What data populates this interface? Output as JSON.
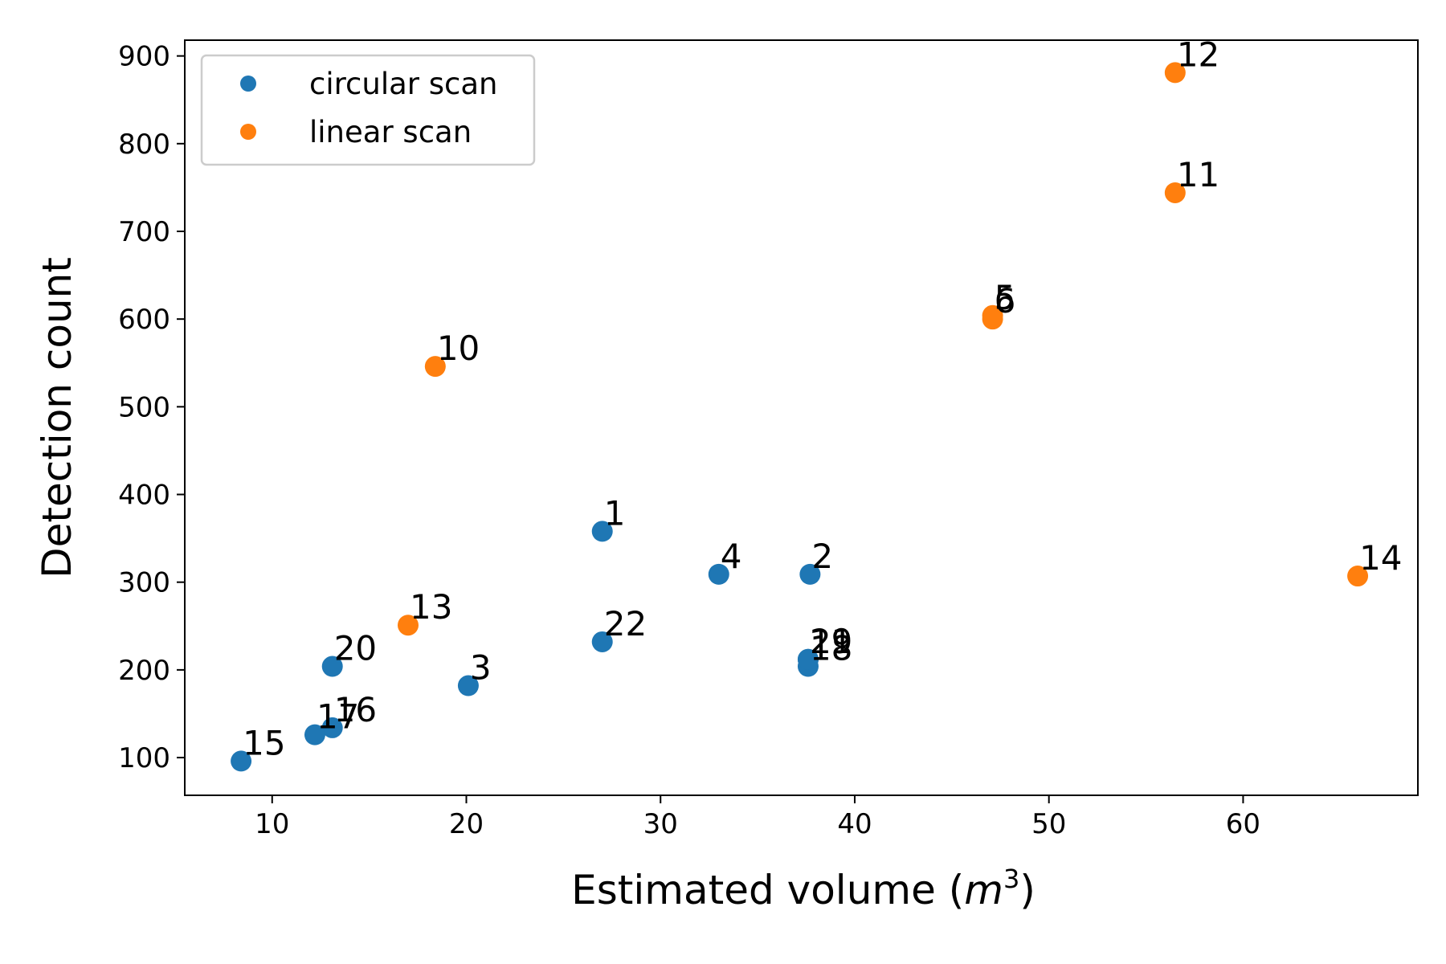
{
  "chart_data": {
    "type": "scatter",
    "xlabel": "Estimated volume (",
    "xlabel_math": "m",
    "xlabel_sup": "3",
    "xlabel_end": ")",
    "ylabel": "Detection count",
    "xlim": [
      5.5,
      69
    ],
    "ylim": [
      57,
      918
    ],
    "xticks": [
      10,
      20,
      30,
      40,
      50,
      60
    ],
    "yticks": [
      100,
      200,
      300,
      400,
      500,
      600,
      700,
      800,
      900
    ],
    "grid": false,
    "legend_position": "upper-left",
    "series": [
      {
        "name": "circular scan",
        "color": "#1f77b4",
        "points": [
          {
            "label": "1",
            "x": 27.0,
            "y": 358
          },
          {
            "label": "2",
            "x": 37.7,
            "y": 309
          },
          {
            "label": "3",
            "x": 20.1,
            "y": 182
          },
          {
            "label": "4",
            "x": 33.0,
            "y": 309
          },
          {
            "label": "15",
            "x": 8.4,
            "y": 96
          },
          {
            "label": "16",
            "x": 13.1,
            "y": 134
          },
          {
            "label": "17",
            "x": 12.2,
            "y": 126
          },
          {
            "label": "18",
            "x": 37.6,
            "y": 204
          },
          {
            "label": "19",
            "x": 37.6,
            "y": 212
          },
          {
            "label": "20",
            "x": 13.1,
            "y": 204
          },
          {
            "label": "21",
            "x": 37.6,
            "y": 212
          },
          {
            "label": "22",
            "x": 27.0,
            "y": 232
          }
        ]
      },
      {
        "name": "linear scan",
        "color": "#ff7f0e",
        "points": [
          {
            "label": "5",
            "x": 47.1,
            "y": 604
          },
          {
            "label": "6",
            "x": 47.1,
            "y": 600
          },
          {
            "label": "10",
            "x": 18.4,
            "y": 546
          },
          {
            "label": "11",
            "x": 56.5,
            "y": 744
          },
          {
            "label": "12",
            "x": 56.5,
            "y": 881
          },
          {
            "label": "13",
            "x": 17.0,
            "y": 251
          },
          {
            "label": "14",
            "x": 65.9,
            "y": 307
          }
        ]
      }
    ]
  }
}
